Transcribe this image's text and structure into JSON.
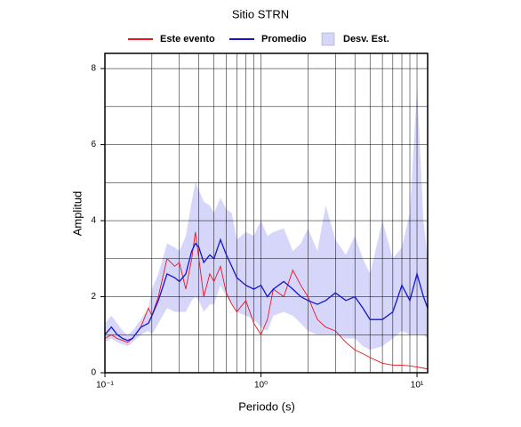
{
  "chart_data": {
    "type": "line",
    "title": "Sitio STRN",
    "xlabel": "Periodo (s)",
    "ylabel": "Amplitud",
    "log_x": true,
    "grid": true,
    "xlim": [
      0.1,
      11.7
    ],
    "ylim": [
      0,
      8.4
    ],
    "xticks": [
      {
        "value": 0.1,
        "label": "10⁻¹"
      },
      {
        "value": 1,
        "label": "10⁰"
      },
      {
        "value": 10,
        "label": "10¹"
      }
    ],
    "xminor_ticks": [
      0.2,
      0.3,
      0.4,
      0.5,
      0.6,
      0.7,
      0.8,
      0.9,
      2,
      3,
      4,
      5,
      6,
      7,
      8,
      9
    ],
    "yticks": [
      0,
      2,
      4,
      6,
      8
    ],
    "yminor_ticks": [
      1,
      3,
      5,
      7
    ],
    "x": [
      0.1,
      0.11,
      0.12,
      0.13,
      0.14,
      0.15,
      0.17,
      0.19,
      0.2,
      0.22,
      0.25,
      0.28,
      0.3,
      0.33,
      0.36,
      0.38,
      0.4,
      0.43,
      0.47,
      0.5,
      0.55,
      0.6,
      0.65,
      0.7,
      0.8,
      0.9,
      1.0,
      1.1,
      1.2,
      1.4,
      1.6,
      1.8,
      2.0,
      2.3,
      2.6,
      3.0,
      3.5,
      4,
      4.5,
      5,
      6,
      7,
      8,
      9,
      10,
      11,
      11.7
    ],
    "band": {
      "name": "Desv. Est.",
      "color": "#d6d6fa",
      "upper": [
        1.3,
        1.5,
        1.3,
        1.1,
        1.0,
        1.1,
        1.4,
        1.7,
        2.2,
        2.6,
        3.4,
        3.3,
        3.2,
        3.6,
        4.5,
        5.0,
        4.8,
        4.5,
        4.4,
        4.2,
        4.6,
        4.3,
        4.2,
        3.5,
        3.7,
        3.6,
        4.0,
        3.6,
        3.7,
        3.8,
        3.2,
        3.4,
        3.8,
        3.2,
        4.4,
        3.5,
        3.1,
        3.6,
        3.0,
        2.6,
        4.0,
        3.0,
        3.3,
        4.2,
        7.5,
        4.0,
        3.0
      ],
      "lower": [
        0.8,
        0.9,
        0.8,
        0.75,
        0.7,
        0.8,
        1.0,
        1.1,
        1.0,
        1.3,
        1.7,
        1.6,
        1.6,
        1.6,
        1.9,
        2.0,
        1.9,
        1.6,
        1.8,
        1.8,
        2.3,
        2.0,
        1.8,
        1.6,
        1.5,
        1.4,
        1.2,
        1.1,
        1.5,
        1.6,
        1.5,
        1.3,
        1.1,
        1.0,
        1.0,
        1.0,
        0.9,
        0.9,
        0.7,
        0.6,
        0.7,
        0.9,
        1.1,
        1.0,
        1.0,
        1.0,
        0.9
      ]
    },
    "series": [
      {
        "name": "Este evento",
        "color": "#e8141e",
        "values": [
          0.9,
          1.0,
          0.9,
          0.85,
          0.8,
          0.9,
          1.2,
          1.7,
          1.5,
          2.0,
          3.0,
          2.8,
          2.9,
          2.2,
          3.0,
          3.7,
          3.0,
          2.0,
          2.6,
          2.4,
          2.8,
          2.1,
          1.8,
          1.6,
          1.9,
          1.3,
          1.0,
          1.4,
          2.2,
          2.0,
          2.7,
          2.3,
          2.0,
          1.4,
          1.2,
          1.1,
          0.8,
          0.6,
          0.5,
          0.4,
          0.25,
          0.2,
          0.2,
          0.18,
          0.15,
          0.12,
          0.1
        ]
      },
      {
        "name": "Promedio",
        "color": "#1414d2",
        "values": [
          1.0,
          1.2,
          1.0,
          0.9,
          0.85,
          0.9,
          1.2,
          1.3,
          1.5,
          1.9,
          2.6,
          2.5,
          2.4,
          2.6,
          3.2,
          3.4,
          3.3,
          2.9,
          3.1,
          3.0,
          3.5,
          3.1,
          2.8,
          2.5,
          2.3,
          2.2,
          2.3,
          2.0,
          2.2,
          2.4,
          2.2,
          2.0,
          1.9,
          1.8,
          1.9,
          2.1,
          1.9,
          2.0,
          1.7,
          1.4,
          1.4,
          1.6,
          2.3,
          1.9,
          2.6,
          2.0,
          1.7
        ]
      }
    ]
  }
}
